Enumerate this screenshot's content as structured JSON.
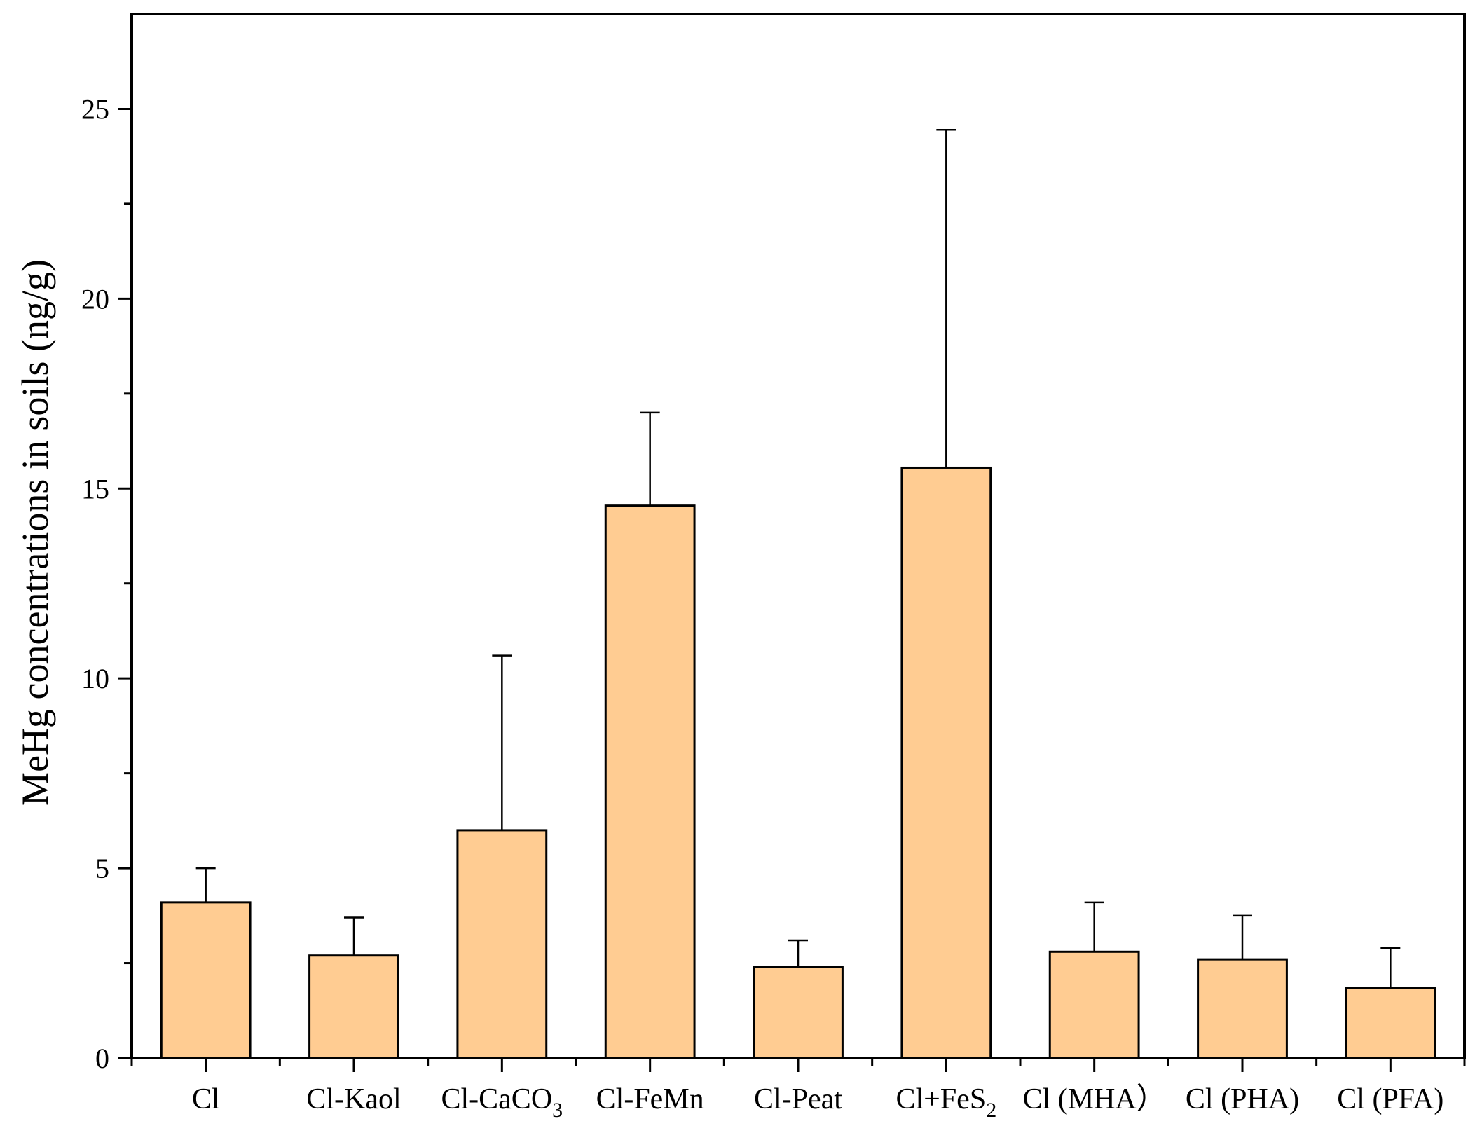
{
  "chart_data": {
    "type": "bar",
    "title": "",
    "xlabel": "",
    "ylabel": "MeHg concentrations in soils (ng/g)",
    "ylim": [
      0,
      27.5
    ],
    "yticks": [
      "0",
      "5",
      "10",
      "15",
      "20",
      "25"
    ],
    "grid": false,
    "bar_color": "#FFCC92",
    "categories": [
      {
        "base": "Cl",
        "sub": ""
      },
      {
        "base": "Cl-Kaol",
        "sub": ""
      },
      {
        "base": "Cl-CaCO",
        "sub": "3"
      },
      {
        "base": "Cl-FeMn",
        "sub": ""
      },
      {
        "base": "Cl-Peat",
        "sub": ""
      },
      {
        "base": "Cl+FeS",
        "sub": "2"
      },
      {
        "base": "Cl (MHA）",
        "sub": ""
      },
      {
        "base": "Cl (PHA)",
        "sub": ""
      },
      {
        "base": "Cl (PFA)",
        "sub": ""
      }
    ],
    "values": [
      4.1,
      2.7,
      6.0,
      14.55,
      2.4,
      15.55,
      2.8,
      2.6,
      1.85
    ],
    "errors": [
      0.9,
      1.0,
      4.6,
      2.45,
      0.7,
      8.9,
      1.3,
      1.15,
      1.05
    ]
  }
}
